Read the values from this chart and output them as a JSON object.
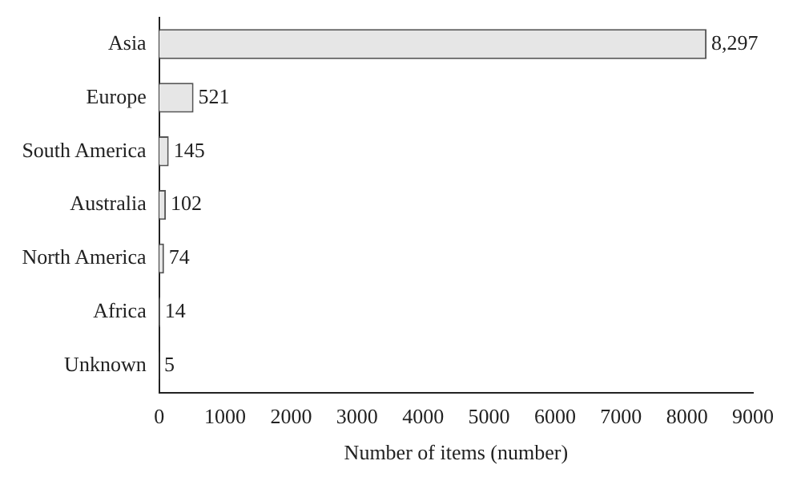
{
  "chart_data": {
    "type": "bar",
    "orientation": "horizontal",
    "xlabel": "Number of items (number)",
    "categories": [
      "Asia",
      "Europe",
      "South America",
      "Australia",
      "North America",
      "Africa",
      "Unknown"
    ],
    "values": [
      8297,
      521,
      145,
      102,
      74,
      14,
      5
    ],
    "value_labels": [
      "8,297",
      "521",
      "145",
      "102",
      "74",
      "14",
      "5"
    ],
    "color": "#e6e6e6",
    "xlim": [
      0,
      9000
    ],
    "xticks": [
      0,
      1000,
      2000,
      3000,
      4000,
      5000,
      6000,
      7000,
      8000,
      9000
    ],
    "grid": false
  }
}
